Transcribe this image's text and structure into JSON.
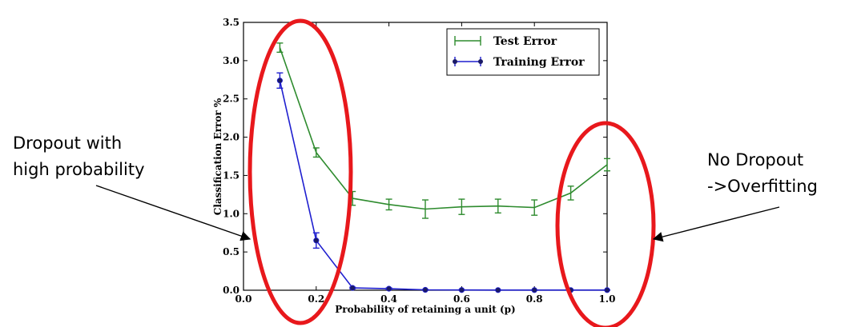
{
  "chart_data": {
    "type": "line",
    "xlabel": "Probability of retaining a unit (p)",
    "ylabel": "Classification Error %",
    "xlim": [
      0.0,
      1.0
    ],
    "ylim": [
      0.0,
      3.5
    ],
    "xticks": [
      "0.0",
      "0.2",
      "0.4",
      "0.6",
      "0.8",
      "1.0"
    ],
    "yticks": [
      "0.0",
      "0.5",
      "1.0",
      "1.5",
      "2.0",
      "2.5",
      "3.0",
      "3.5"
    ],
    "legend": "top-right",
    "grid": false,
    "series": [
      {
        "name": "Test Error",
        "color": "#2e8b2e",
        "marker": "none",
        "x": [
          0.1,
          0.2,
          0.3,
          0.4,
          0.5,
          0.6,
          0.7,
          0.8,
          0.9,
          1.0
        ],
        "y": [
          3.17,
          1.8,
          1.2,
          1.12,
          1.06,
          1.09,
          1.1,
          1.08,
          1.27,
          1.64
        ],
        "err": [
          0.06,
          0.06,
          0.09,
          0.07,
          0.12,
          0.1,
          0.09,
          0.1,
          0.09,
          0.08
        ]
      },
      {
        "name": "Training Error",
        "color": "#1f1fcf",
        "marker": "circle",
        "x": [
          0.1,
          0.2,
          0.3,
          0.4,
          0.5,
          0.6,
          0.7,
          0.8,
          0.9,
          1.0
        ],
        "y": [
          2.74,
          0.65,
          0.03,
          0.02,
          0.005,
          0.003,
          0.002,
          0.002,
          0.002,
          0.002
        ],
        "err": [
          0.1,
          0.1,
          0.01,
          0.01,
          0.005,
          0.003,
          0.002,
          0.002,
          0.002,
          0.002
        ]
      }
    ]
  },
  "annotations": {
    "left_note_line1": "Dropout with",
    "left_note_line2": "high probability",
    "right_note_line1": "No Dropout",
    "right_note_line2": "->Overfitting",
    "ellipse_color": "#e8181c",
    "arrow_color": "#000000"
  }
}
